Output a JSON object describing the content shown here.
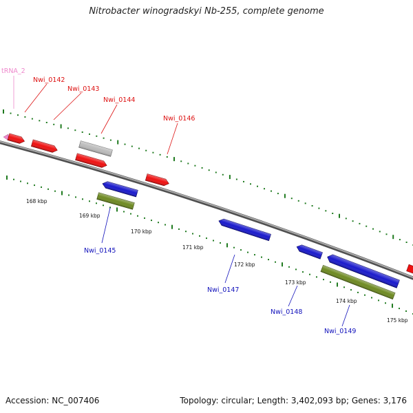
{
  "title": "Nitrobacter winogradskyi Nb-255, complete genome",
  "footer": {
    "accession": "Accession: NC_007406",
    "summary": "Topology: circular; Length: 3,402,093 bp; Genes: 3,176"
  },
  "colors": {
    "backbone": "#7a7a7a",
    "tick_dot": "#1f7a1f",
    "forward_gene": "#ee1111",
    "forward_label": "#dd1111",
    "reverse_gene": "#1a1acc",
    "reverse_label": "#1010bb",
    "cds_feature": "#6e8a22",
    "pseudo_gene": "#bbbbbb",
    "trna": "#ee88cc"
  },
  "scale_labels": [
    {
      "text": "168 kbp",
      "pos_kbp": 168
    },
    {
      "text": "169 kbp",
      "pos_kbp": 169
    },
    {
      "text": "170 kbp",
      "pos_kbp": 170
    },
    {
      "text": "171 kbp",
      "pos_kbp": 171
    },
    {
      "text": "172 kbp",
      "pos_kbp": 172
    },
    {
      "text": "173 kbp",
      "pos_kbp": 173
    },
    {
      "text": "174 kbp",
      "pos_kbp": 174
    },
    {
      "text": "175 kbp",
      "pos_kbp": 175
    }
  ],
  "gene_labels": [
    {
      "name": "tRNA_2",
      "strand": "trna"
    },
    {
      "name": "Nwi_0142",
      "strand": "forward"
    },
    {
      "name": "Nwi_0143",
      "strand": "forward"
    },
    {
      "name": "Nwi_0144",
      "strand": "forward"
    },
    {
      "name": "Nwi_0146",
      "strand": "forward"
    },
    {
      "name": "Nwi_0145",
      "strand": "reverse"
    },
    {
      "name": "Nwi_0147",
      "strand": "reverse"
    },
    {
      "name": "Nwi_0148",
      "strand": "reverse"
    },
    {
      "name": "Nwi_0149",
      "strand": "reverse"
    }
  ]
}
